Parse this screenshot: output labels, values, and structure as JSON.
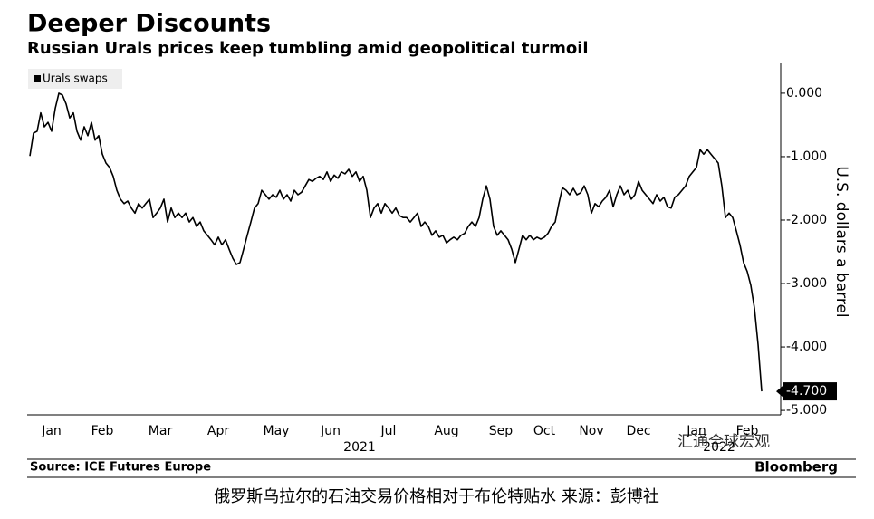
{
  "chart_data": {
    "type": "line",
    "title": "Deeper Discounts",
    "subtitle": "Russian Urals prices keep tumbling amid geopolitical turmoil",
    "y_label": "U.S. dollars a barrel",
    "source": "Source: ICE Futures Europe",
    "brand": "Bloomberg",
    "caption": "俄罗斯乌拉尔的石油交易价格相对于布伦特贴水 来源：彭博社",
    "watermark": "汇通全球宏观",
    "year_labels": [
      "2021",
      "2022"
    ],
    "last_label": {
      "value": -4.7,
      "label": "-4.700"
    },
    "ylim": [
      -5.07,
      0.47
    ],
    "yticks": [
      {
        "value": 0,
        "label": "0.000"
      },
      {
        "value": -1,
        "label": "-1.000"
      },
      {
        "value": -2,
        "label": "-2.000"
      },
      {
        "value": -3,
        "label": "-3.000"
      },
      {
        "value": -4,
        "label": "-4.000"
      },
      {
        "value": -5,
        "label": "-5.000"
      }
    ],
    "categories": [
      null,
      null,
      null,
      null,
      null,
      null,
      "Jan",
      null,
      null,
      null,
      null,
      null,
      null,
      null,
      null,
      null,
      null,
      null,
      null,
      null,
      "Feb",
      null,
      null,
      null,
      null,
      null,
      null,
      null,
      null,
      null,
      null,
      null,
      null,
      null,
      null,
      null,
      "Mar",
      null,
      null,
      null,
      null,
      null,
      null,
      null,
      null,
      null,
      null,
      null,
      null,
      null,
      null,
      null,
      "Apr",
      null,
      null,
      null,
      null,
      null,
      null,
      null,
      null,
      null,
      null,
      null,
      null,
      null,
      null,
      null,
      "May",
      null,
      null,
      null,
      null,
      null,
      null,
      null,
      null,
      null,
      null,
      null,
      null,
      null,
      null,
      "Jun",
      null,
      null,
      null,
      null,
      null,
      null,
      null,
      null,
      null,
      null,
      null,
      null,
      null,
      null,
      null,
      "Jul",
      null,
      null,
      null,
      null,
      null,
      null,
      null,
      null,
      null,
      null,
      null,
      null,
      null,
      null,
      null,
      "Aug",
      null,
      null,
      null,
      null,
      null,
      null,
      null,
      null,
      null,
      null,
      null,
      null,
      null,
      null,
      "Sep",
      null,
      null,
      null,
      null,
      null,
      null,
      null,
      null,
      null,
      null,
      null,
      "Oct",
      null,
      null,
      null,
      null,
      null,
      null,
      null,
      null,
      null,
      null,
      null,
      null,
      "Nov",
      null,
      null,
      null,
      null,
      null,
      null,
      null,
      null,
      null,
      null,
      null,
      null,
      "Dec",
      null,
      null,
      null,
      null,
      null,
      null,
      null,
      null,
      null,
      null,
      null,
      null,
      null,
      null,
      null,
      "Jan",
      null,
      null,
      null,
      null,
      null,
      null,
      null,
      null,
      null,
      null,
      null,
      null,
      null,
      "Feb",
      null,
      null,
      null,
      null
    ],
    "series": [
      {
        "name": "Urals swaps",
        "color": "#000000",
        "values": [
          -0.99,
          -0.63,
          -0.6,
          -0.31,
          -0.53,
          -0.46,
          -0.6,
          -0.24,
          0,
          -0.03,
          -0.17,
          -0.39,
          -0.31,
          -0.6,
          -0.74,
          -0.53,
          -0.67,
          -0.46,
          -0.74,
          -0.67,
          -0.96,
          -1.1,
          -1.17,
          -1.31,
          -1.53,
          -1.67,
          -1.74,
          -1.7,
          -1.81,
          -1.89,
          -1.74,
          -1.81,
          -1.74,
          -1.67,
          -1.96,
          -1.89,
          -1.81,
          -1.67,
          -2.03,
          -1.81,
          -1.96,
          -1.89,
          -1.96,
          -1.89,
          -2.03,
          -1.96,
          -2.1,
          -2.03,
          -2.17,
          -2.24,
          -2.31,
          -2.39,
          -2.27,
          -2.39,
          -2.31,
          -2.46,
          -2.6,
          -2.7,
          -2.67,
          -2.46,
          -2.24,
          -2.03,
          -1.81,
          -1.74,
          -1.53,
          -1.6,
          -1.67,
          -1.6,
          -1.64,
          -1.53,
          -1.67,
          -1.6,
          -1.7,
          -1.53,
          -1.6,
          -1.56,
          -1.46,
          -1.36,
          -1.39,
          -1.34,
          -1.31,
          -1.36,
          -1.24,
          -1.39,
          -1.29,
          -1.34,
          -1.24,
          -1.27,
          -1.2,
          -1.31,
          -1.24,
          -1.39,
          -1.31,
          -1.53,
          -1.96,
          -1.81,
          -1.74,
          -1.89,
          -1.74,
          -1.81,
          -1.89,
          -1.81,
          -1.93,
          -1.96,
          -1.96,
          -2.03,
          -1.96,
          -1.89,
          -2.1,
          -2.03,
          -2.1,
          -2.24,
          -2.17,
          -2.27,
          -2.24,
          -2.36,
          -2.31,
          -2.27,
          -2.31,
          -2.24,
          -2.21,
          -2.1,
          -2.03,
          -2.1,
          -1.96,
          -1.67,
          -1.46,
          -1.67,
          -2.1,
          -2.24,
          -2.17,
          -2.24,
          -2.31,
          -2.46,
          -2.67,
          -2.46,
          -2.24,
          -2.31,
          -2.24,
          -2.31,
          -2.27,
          -2.3,
          -2.27,
          -2.21,
          -2.1,
          -2.03,
          -1.74,
          -1.49,
          -1.53,
          -1.6,
          -1.5,
          -1.6,
          -1.57,
          -1.46,
          -1.6,
          -1.89,
          -1.74,
          -1.79,
          -1.7,
          -1.64,
          -1.53,
          -1.79,
          -1.6,
          -1.46,
          -1.6,
          -1.53,
          -1.67,
          -1.6,
          -1.39,
          -1.53,
          -1.6,
          -1.67,
          -1.74,
          -1.6,
          -1.7,
          -1.64,
          -1.79,
          -1.81,
          -1.64,
          -1.6,
          -1.53,
          -1.46,
          -1.31,
          -1.24,
          -1.17,
          -0.89,
          -0.96,
          -0.89,
          -0.96,
          -1.03,
          -1.1,
          -1.46,
          -1.96,
          -1.89,
          -1.96,
          -2.17,
          -2.39,
          -2.67,
          -2.81,
          -3.03,
          -3.39,
          -3.96,
          -4.7
        ]
      }
    ]
  }
}
